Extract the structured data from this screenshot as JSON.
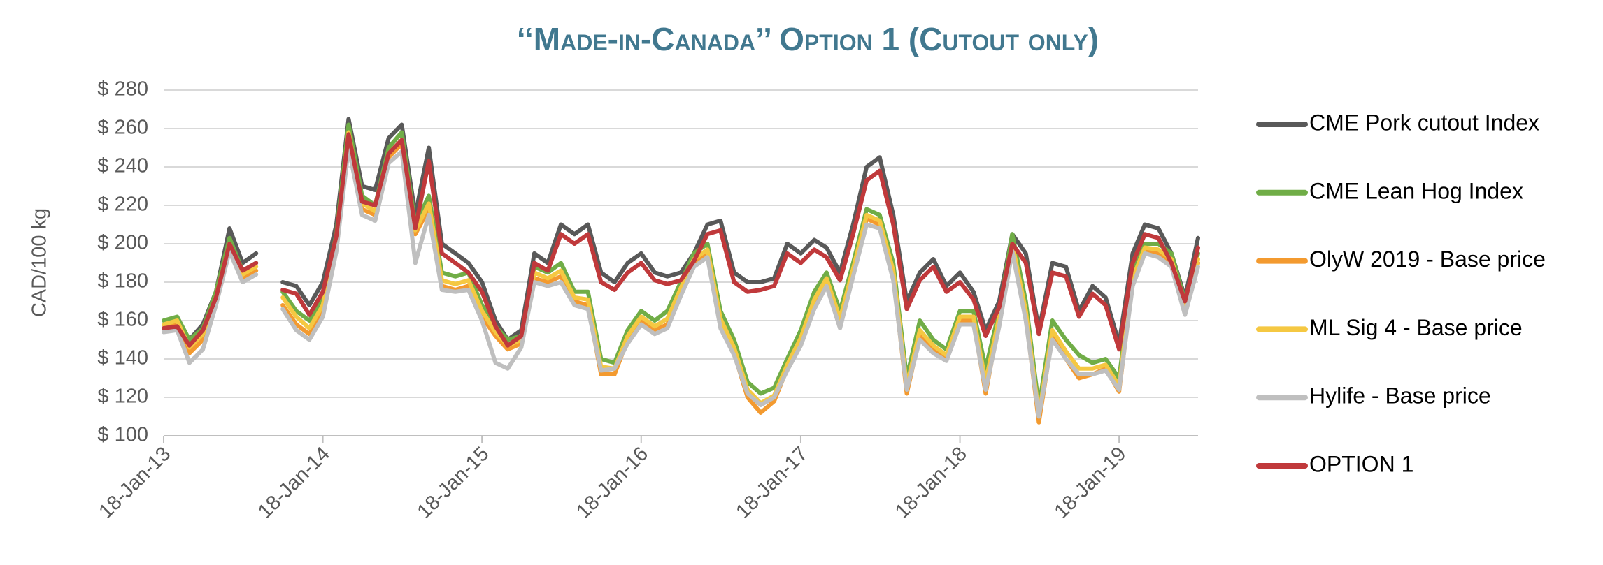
{
  "chart_data": {
    "type": "line",
    "title": "‘‘Made-in-Canada’’ Option 1 (Cutout only)",
    "y_label": "CAD/100 kg",
    "ylim": [
      100,
      280
    ],
    "yticks": [
      {
        "value": 100,
        "label": "$ 100"
      },
      {
        "value": 120,
        "label": "$ 120"
      },
      {
        "value": 140,
        "label": "$ 140"
      },
      {
        "value": 160,
        "label": "$ 160"
      },
      {
        "value": 180,
        "label": "$ 180"
      },
      {
        "value": 200,
        "label": "$ 200"
      },
      {
        "value": 220,
        "label": "$ 220"
      },
      {
        "value": 240,
        "label": "$ 240"
      },
      {
        "value": 260,
        "label": "$ 260"
      },
      {
        "value": 280,
        "label": "$ 280"
      }
    ],
    "xlim": [
      "2013-01-18",
      "2019-07-18"
    ],
    "xticks": [
      {
        "value": "2013-01-18",
        "label": "18-Jan-13"
      },
      {
        "value": "2014-01-18",
        "label": "18-Jan-14"
      },
      {
        "value": "2015-01-18",
        "label": "18-Jan-15"
      },
      {
        "value": "2016-01-18",
        "label": "18-Jan-16"
      },
      {
        "value": "2017-01-18",
        "label": "18-Jan-17"
      },
      {
        "value": "2018-01-18",
        "label": "18-Jan-18"
      },
      {
        "value": "2019-01-18",
        "label": "18-Jan-19"
      }
    ],
    "grid": true,
    "legend": "right",
    "x": [
      "2013-01-18",
      "2013-02-18",
      "2013-03-18",
      "2013-04-18",
      "2013-05-18",
      "2013-06-18",
      "2013-07-18",
      "2013-08-18",
      "2013-09-18",
      "2013-10-18",
      "2013-11-18",
      "2013-12-18",
      "2014-01-18",
      "2014-02-18",
      "2014-03-18",
      "2014-04-18",
      "2014-05-18",
      "2014-06-18",
      "2014-07-18",
      "2014-08-18",
      "2014-09-18",
      "2014-10-18",
      "2014-11-18",
      "2014-12-18",
      "2015-01-18",
      "2015-02-18",
      "2015-03-18",
      "2015-04-18",
      "2015-05-18",
      "2015-06-18",
      "2015-07-18",
      "2015-08-18",
      "2015-09-18",
      "2015-10-18",
      "2015-11-18",
      "2015-12-18",
      "2016-01-18",
      "2016-02-18",
      "2016-03-18",
      "2016-04-18",
      "2016-05-18",
      "2016-06-18",
      "2016-07-18",
      "2016-08-18",
      "2016-09-18",
      "2016-10-18",
      "2016-11-18",
      "2016-12-18",
      "2017-01-18",
      "2017-02-18",
      "2017-03-18",
      "2017-04-18",
      "2017-05-18",
      "2017-06-18",
      "2017-07-18",
      "2017-08-18",
      "2017-09-18",
      "2017-10-18",
      "2017-11-18",
      "2017-12-18",
      "2018-01-18",
      "2018-02-18",
      "2018-03-18",
      "2018-04-18",
      "2018-05-18",
      "2018-06-18",
      "2018-07-18",
      "2018-08-18",
      "2018-09-18",
      "2018-10-18",
      "2018-11-18",
      "2018-12-18",
      "2019-01-18",
      "2019-02-18",
      "2019-03-18",
      "2019-04-18",
      "2019-05-18",
      "2019-06-18",
      "2019-07-18"
    ],
    "series": [
      {
        "name": "CME Pork cutout Index",
        "color": "#595959",
        "values": [
          158,
          160,
          150,
          158,
          175,
          208,
          190,
          195,
          null,
          180,
          178,
          168,
          180,
          210,
          265,
          230,
          228,
          255,
          262,
          215,
          250,
          200,
          195,
          190,
          180,
          160,
          150,
          155,
          195,
          190,
          210,
          205,
          210,
          185,
          180,
          190,
          195,
          185,
          183,
          185,
          195,
          210,
          212,
          185,
          180,
          180,
          182,
          200,
          195,
          202,
          198,
          185,
          210,
          240,
          245,
          215,
          170,
          185,
          192,
          178,
          185,
          175,
          155,
          170,
          205,
          195,
          155,
          190,
          188,
          165,
          178,
          172,
          148,
          195,
          210,
          208,
          195,
          172,
          203
        ]
      },
      {
        "name": "CME Lean Hog Index",
        "color": "#70ad47",
        "values": [
          160,
          162,
          150,
          156,
          175,
          203,
          186,
          190,
          null,
          175,
          165,
          160,
          172,
          205,
          262,
          225,
          220,
          250,
          258,
          210,
          225,
          185,
          183,
          185,
          168,
          157,
          150,
          152,
          188,
          185,
          190,
          175,
          175,
          140,
          138,
          155,
          165,
          160,
          165,
          180,
          195,
          200,
          165,
          150,
          128,
          122,
          125,
          140,
          155,
          175,
          185,
          165,
          190,
          218,
          215,
          190,
          130,
          160,
          150,
          145,
          165,
          165,
          135,
          165,
          205,
          170,
          115,
          160,
          150,
          142,
          138,
          140,
          130,
          185,
          200,
          200,
          195,
          170,
          195
        ]
      },
      {
        "name": "OlyW 2019 - Base price",
        "color": "#f39a2f",
        "values": [
          156,
          158,
          143,
          150,
          170,
          198,
          182,
          186,
          null,
          168,
          158,
          153,
          165,
          198,
          255,
          218,
          215,
          245,
          252,
          205,
          218,
          178,
          176,
          178,
          162,
          152,
          145,
          148,
          182,
          180,
          183,
          170,
          168,
          132,
          132,
          150,
          160,
          155,
          158,
          175,
          190,
          195,
          158,
          143,
          120,
          112,
          118,
          135,
          148,
          168,
          180,
          158,
          185,
          213,
          210,
          183,
          122,
          152,
          145,
          140,
          160,
          160,
          122,
          160,
          198,
          162,
          107,
          152,
          140,
          130,
          132,
          135,
          123,
          180,
          197,
          195,
          190,
          165,
          190
        ]
      },
      {
        "name": "ML Sig 4 - Base price",
        "color": "#f5c842",
        "values": [
          158,
          160,
          146,
          153,
          172,
          200,
          184,
          188,
          null,
          172,
          162,
          156,
          168,
          201,
          258,
          221,
          217,
          247,
          254,
          207,
          221,
          181,
          179,
          181,
          165,
          154,
          147,
          150,
          185,
          182,
          186,
          172,
          171,
          136,
          135,
          152,
          162,
          157,
          161,
          177,
          192,
          197,
          161,
          146,
          124,
          117,
          121,
          137,
          151,
          171,
          182,
          161,
          187,
          215,
          212,
          186,
          126,
          155,
          147,
          142,
          162,
          162,
          128,
          162,
          200,
          165,
          111,
          155,
          144,
          135,
          135,
          137,
          126,
          182,
          198,
          197,
          192,
          167,
          192
        ]
      },
      {
        "name": "Hylife  - Base price",
        "color": "#bfbfbf",
        "values": [
          154,
          155,
          138,
          145,
          168,
          196,
          180,
          184,
          null,
          166,
          155,
          150,
          162,
          196,
          250,
          215,
          212,
          242,
          248,
          190,
          215,
          176,
          175,
          176,
          160,
          138,
          135,
          146,
          180,
          178,
          180,
          168,
          166,
          134,
          135,
          148,
          158,
          153,
          156,
          173,
          188,
          193,
          156,
          142,
          122,
          116,
          120,
          134,
          147,
          166,
          178,
          156,
          183,
          210,
          208,
          181,
          124,
          150,
          143,
          139,
          158,
          158,
          124,
          157,
          196,
          160,
          110,
          150,
          140,
          132,
          132,
          134,
          124,
          178,
          195,
          193,
          188,
          163,
          188
        ]
      },
      {
        "name": "OPTION 1",
        "color": "#c0393b",
        "values": [
          156,
          157,
          147,
          155,
          172,
          200,
          186,
          190,
          null,
          176,
          174,
          163,
          175,
          204,
          257,
          222,
          220,
          247,
          254,
          208,
          243,
          195,
          190,
          185,
          175,
          157,
          147,
          152,
          190,
          186,
          205,
          200,
          205,
          180,
          176,
          185,
          190,
          181,
          179,
          181,
          191,
          205,
          207,
          180,
          175,
          176,
          178,
          195,
          190,
          197,
          193,
          181,
          205,
          233,
          238,
          210,
          166,
          181,
          188,
          175,
          180,
          171,
          152,
          167,
          200,
          190,
          153,
          185,
          183,
          162,
          174,
          168,
          145,
          190,
          205,
          203,
          190,
          170,
          198
        ]
      }
    ]
  }
}
